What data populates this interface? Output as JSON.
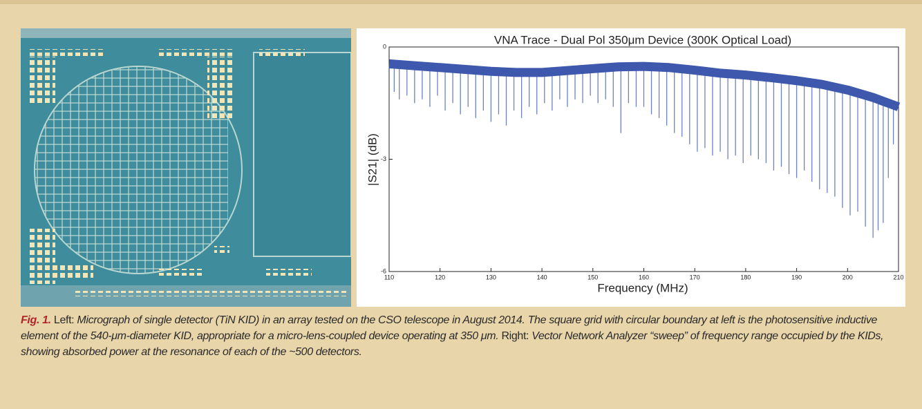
{
  "chart_data": {
    "type": "line",
    "title": "VNA Trace - Dual Pol 350μm Device (300K Optical Load)",
    "x_label": "Frequency (MHz)",
    "y_label": "|S21| (dB)",
    "color": "#3d58ac",
    "xlim": [
      110,
      210
    ],
    "xticks": [
      110,
      120,
      130,
      140,
      150,
      160,
      170,
      180,
      190,
      200,
      210
    ],
    "ylim": [
      -6,
      0
    ],
    "yticks": [
      0,
      -3,
      -6
    ],
    "trace": {
      "x": [
        110,
        115,
        120,
        125,
        130,
        135,
        140,
        145,
        150,
        155,
        160,
        165,
        170,
        175,
        180,
        185,
        190,
        195,
        200,
        205,
        210
      ],
      "values": [
        -0.45,
        -0.5,
        -0.55,
        -0.6,
        -0.65,
        -0.68,
        -0.68,
        -0.63,
        -0.58,
        -0.53,
        -0.52,
        -0.55,
        -0.62,
        -0.7,
        -0.75,
        -0.82,
        -0.9,
        -1.0,
        -1.15,
        -1.35,
        -1.6
      ]
    },
    "dips": {
      "x": [
        111,
        112,
        113.5,
        115,
        116.5,
        118,
        119.5,
        121,
        122.5,
        124,
        125.5,
        127,
        128.5,
        130,
        131.5,
        133,
        134.5,
        136,
        137.5,
        139,
        140.5,
        142,
        143.5,
        145,
        146.5,
        148,
        149.5,
        151,
        152.5,
        154,
        155.5,
        157,
        158.5,
        160,
        161.5,
        163,
        164.5,
        166,
        167.5,
        169,
        170.5,
        172,
        173.5,
        175,
        176.5,
        178,
        179.5,
        181,
        182.5,
        184,
        185.5,
        187,
        188.5,
        190,
        191.5,
        193,
        194.5,
        196,
        197.5,
        199,
        200.5,
        202,
        203.5,
        205,
        206,
        207,
        208,
        209
      ],
      "values": [
        -1.2,
        -1.4,
        -1.3,
        -1.5,
        -1.4,
        -1.6,
        -1.3,
        -1.7,
        -1.5,
        -1.8,
        -1.6,
        -1.9,
        -1.7,
        -2.0,
        -1.8,
        -2.1,
        -1.7,
        -1.9,
        -1.6,
        -1.8,
        -1.5,
        -1.7,
        -1.4,
        -1.6,
        -1.4,
        -1.5,
        -1.3,
        -1.5,
        -1.4,
        -1.6,
        -2.3,
        -1.5,
        -1.6,
        -1.6,
        -1.8,
        -1.9,
        -2.1,
        -2.3,
        -2.4,
        -2.6,
        -2.8,
        -2.7,
        -2.9,
        -2.8,
        -3.0,
        -2.9,
        -3.1,
        -2.9,
        -3.0,
        -3.1,
        -3.3,
        -3.2,
        -3.4,
        -3.5,
        -3.3,
        -3.6,
        -3.8,
        -3.9,
        -4.0,
        -4.3,
        -4.5,
        -4.4,
        -4.8,
        -5.1,
        -4.9,
        -4.7,
        -3.5,
        -2.6
      ]
    }
  },
  "caption": {
    "label": "Fig. 1.",
    "left": "Left:",
    "left_text": "Micrograph of single detector (TiN KID) in an array tested on the CSO telescope in August 2014. The square grid with circular boundary at left is the photosensitive inductive element of the 540-μm-diameter KID, appropriate for a micro-lens-coupled device operating at 350 μm.",
    "right": "Right:",
    "right_text": "Vector Network Analyzer “sweep” of frequency range occupied by the KIDs, showing absorbed power at the resonance of each of the ~500 detectors."
  }
}
